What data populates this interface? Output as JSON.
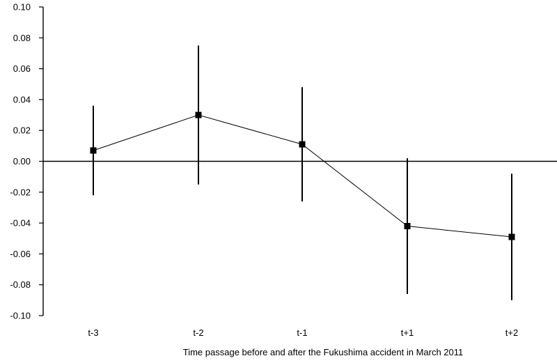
{
  "chart_data": {
    "type": "line",
    "title": "",
    "xlabel": "Time passage before and after the Fukushima accident in March 2011",
    "ylabel": "",
    "categories": [
      "t-3",
      "t-2",
      "t-1",
      "t+1",
      "t+2"
    ],
    "ylim": [
      -0.1,
      0.1
    ],
    "yticks": [
      "0.10",
      "0.08",
      "0.06",
      "0.04",
      "0.02",
      "0.00",
      "-0.02",
      "-0.04",
      "-0.06",
      "-0.08",
      "-0.10"
    ],
    "series": [
      {
        "values": [
          0.007,
          0.03,
          0.011,
          -0.042,
          -0.049
        ],
        "ci_low": [
          -0.022,
          -0.015,
          -0.026,
          -0.086,
          -0.09
        ],
        "ci_high": [
          0.036,
          0.075,
          0.048,
          0.002,
          -0.008
        ],
        "marker": "square",
        "color": "#000000"
      }
    ],
    "grid": false,
    "legend": "none"
  }
}
